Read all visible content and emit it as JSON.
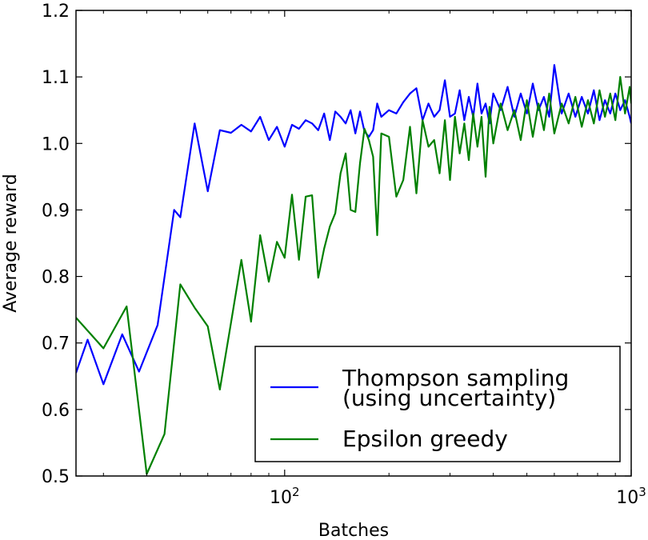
{
  "chart_data": {
    "type": "line",
    "title": "",
    "xlabel": "Batches",
    "ylabel": "Average reward",
    "xscale": "log",
    "xlim": [
      25,
      1000
    ],
    "ylim": [
      0.5,
      1.2
    ],
    "yticks": [
      0.5,
      0.6,
      0.7,
      0.8,
      0.9,
      1.0,
      1.1,
      1.2
    ],
    "ytick_labels": [
      "0.5",
      "0.6",
      "0.7",
      "0.8",
      "0.9",
      "1.0",
      "1.1",
      "1.2"
    ],
    "xticks": [
      100,
      1000
    ],
    "xtick_labels": [
      {
        "base": "10",
        "exp": "2"
      },
      {
        "base": "10",
        "exp": "3"
      }
    ],
    "legend_position": "lower-right",
    "series": [
      {
        "name": "Thompson sampling (using uncertainty)",
        "legend_lines": [
          "Thompson sampling",
          "(using uncertainty)"
        ],
        "color": "#0000ff",
        "x": [
          25,
          27,
          30,
          34,
          38,
          43,
          48,
          50,
          55,
          60,
          65,
          70,
          75,
          80,
          85,
          90,
          95,
          100,
          105,
          110,
          115,
          120,
          125,
          130,
          135,
          140,
          145,
          150,
          155,
          160,
          165,
          170,
          175,
          180,
          185,
          190,
          200,
          210,
          220,
          230,
          240,
          250,
          260,
          270,
          280,
          290,
          300,
          310,
          320,
          330,
          340,
          350,
          360,
          370,
          380,
          390,
          400,
          420,
          440,
          460,
          480,
          500,
          520,
          540,
          560,
          580,
          600,
          630,
          660,
          690,
          720,
          750,
          780,
          810,
          840,
          870,
          900,
          930,
          960,
          990,
          1000
        ],
        "y": [
          0.655,
          0.705,
          0.638,
          0.713,
          0.657,
          0.727,
          0.9,
          0.889,
          1.03,
          0.928,
          1.02,
          1.016,
          1.028,
          1.018,
          1.04,
          1.005,
          1.025,
          0.995,
          1.028,
          1.022,
          1.035,
          1.03,
          1.02,
          1.045,
          1.005,
          1.048,
          1.04,
          1.03,
          1.05,
          1.015,
          1.048,
          1.018,
          1.01,
          1.02,
          1.06,
          1.04,
          1.05,
          1.045,
          1.062,
          1.075,
          1.083,
          1.035,
          1.06,
          1.04,
          1.05,
          1.095,
          1.04,
          1.045,
          1.08,
          1.035,
          1.07,
          1.04,
          1.09,
          1.045,
          1.06,
          1.03,
          1.075,
          1.05,
          1.085,
          1.04,
          1.075,
          1.045,
          1.09,
          1.05,
          1.07,
          1.04,
          1.118,
          1.045,
          1.075,
          1.04,
          1.07,
          1.045,
          1.08,
          1.035,
          1.065,
          1.045,
          1.075,
          1.05,
          1.065,
          1.04,
          1.03
        ]
      },
      {
        "name": "Epsilon greedy",
        "legend_lines": [
          "Epsilon greedy"
        ],
        "color": "#008000",
        "x": [
          25,
          30,
          35,
          40,
          45,
          50,
          55,
          60,
          65,
          70,
          75,
          80,
          85,
          90,
          95,
          100,
          105,
          110,
          115,
          120,
          125,
          130,
          135,
          140,
          145,
          150,
          155,
          160,
          165,
          170,
          175,
          180,
          185,
          190,
          200,
          210,
          220,
          230,
          240,
          250,
          260,
          270,
          280,
          290,
          300,
          310,
          320,
          330,
          340,
          350,
          360,
          370,
          380,
          390,
          400,
          420,
          440,
          460,
          480,
          500,
          520,
          540,
          560,
          580,
          600,
          630,
          660,
          690,
          720,
          750,
          780,
          810,
          840,
          870,
          900,
          930,
          960,
          990,
          1000
        ],
        "y": [
          0.738,
          0.692,
          0.755,
          0.503,
          0.563,
          0.788,
          0.753,
          0.725,
          0.63,
          0.73,
          0.825,
          0.732,
          0.862,
          0.792,
          0.852,
          0.828,
          0.923,
          0.825,
          0.92,
          0.922,
          0.798,
          0.842,
          0.875,
          0.895,
          0.955,
          0.985,
          0.9,
          0.897,
          0.97,
          1.022,
          1.005,
          0.98,
          0.862,
          1.015,
          1.01,
          0.92,
          0.945,
          1.025,
          0.925,
          1.035,
          0.995,
          1.005,
          0.955,
          1.035,
          0.945,
          1.04,
          0.985,
          1.03,
          0.975,
          1.045,
          0.995,
          1.04,
          0.95,
          1.055,
          1.0,
          1.06,
          1.02,
          1.05,
          1.005,
          1.065,
          1.01,
          1.06,
          1.02,
          1.075,
          1.015,
          1.06,
          1.03,
          1.07,
          1.025,
          1.065,
          1.03,
          1.08,
          1.04,
          1.075,
          1.035,
          1.1,
          1.045,
          1.085,
          1.06
        ]
      }
    ]
  }
}
